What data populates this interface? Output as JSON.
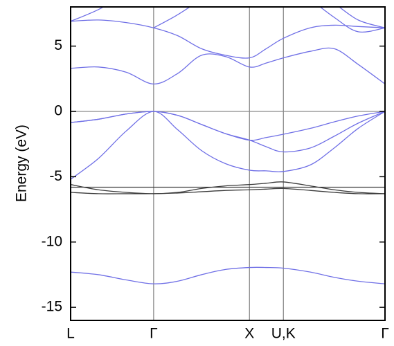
{
  "chart_data": {
    "type": "line",
    "ylabel": "Energy (eV)",
    "x": [
      0,
      0.29,
      0.58,
      0.866,
      1.116,
      1.366,
      1.616,
      1.866,
      2.04,
      2.22,
      2.5,
      2.75,
      3.0,
      3.28
    ],
    "xlim": [
      0,
      3.28
    ],
    "xticks": [
      {
        "value": 0,
        "label": "L"
      },
      {
        "value": 0.866,
        "label": "Γ"
      },
      {
        "value": 1.866,
        "label": "X"
      },
      {
        "value": 2.22,
        "label": "U,K"
      },
      {
        "value": 3.28,
        "label": "Γ"
      }
    ],
    "xgrid": true,
    "ylim": [
      -16,
      8
    ],
    "yticks": [
      -15,
      -10,
      -5,
      0,
      5
    ],
    "reference_line": 0,
    "series": [
      {
        "color": "#6f6fe6",
        "values": [
          -12.3,
          -12.5,
          -12.9,
          -13.2,
          -13.0,
          -12.5,
          -12.1,
          -11.95,
          -11.95,
          -12.0,
          -12.3,
          -12.7,
          -13.0,
          -13.2
        ]
      },
      {
        "color": "#3a3a3a",
        "values": [
          -5.8,
          -5.8,
          -5.8,
          -5.8,
          -5.8,
          -5.8,
          -5.8,
          -5.8,
          -5.8,
          -5.8,
          -5.8,
          -5.8,
          -5.8,
          -5.8
        ]
      },
      {
        "color": "#3a3a3a",
        "values": [
          -5.6,
          -6.0,
          -6.2,
          -6.3,
          -6.2,
          -5.9,
          -5.7,
          -5.6,
          -5.5,
          -5.4,
          -5.7,
          -6.0,
          -6.2,
          -6.3
        ]
      },
      {
        "color": "#3a3a3a",
        "values": [
          -6.2,
          -6.3,
          -6.3,
          -6.3,
          -6.25,
          -6.15,
          -6.05,
          -6.0,
          -5.95,
          -5.9,
          -6.05,
          -6.2,
          -6.3,
          -6.3
        ]
      },
      {
        "color": "#6f6fe6",
        "values": [
          -5.2,
          -3.6,
          -1.5,
          0,
          -1.4,
          -3.0,
          -4.0,
          -4.5,
          -4.55,
          -4.6,
          -4.1,
          -2.8,
          -1.3,
          0
        ]
      },
      {
        "color": "#6f6fe6",
        "values": [
          -0.85,
          -0.6,
          -0.2,
          0,
          -0.3,
          -1.0,
          -1.7,
          -2.2,
          -2.7,
          -3.1,
          -2.8,
          -1.9,
          -0.9,
          0
        ]
      },
      {
        "color": "#6f6fe6",
        "values": [
          -0.85,
          -0.6,
          -0.2,
          0,
          -0.3,
          -1.0,
          -1.7,
          -2.2,
          -2.0,
          -1.75,
          -1.3,
          -0.8,
          -0.35,
          0
        ]
      },
      {
        "color": "#6f6fe6",
        "values": [
          3.3,
          3.4,
          3.0,
          2.1,
          2.9,
          4.3,
          4.2,
          3.4,
          3.7,
          4.1,
          4.6,
          4.8,
          3.6,
          2.1
        ]
      },
      {
        "color": "#6f6fe6",
        "values": [
          6.9,
          7.0,
          6.8,
          6.4,
          5.8,
          4.8,
          4.3,
          4.1,
          4.8,
          5.6,
          6.4,
          6.6,
          6.5,
          6.4
        ]
      },
      {
        "color": "#6f6fe6",
        "values": [
          6.9,
          7.8,
          9.0,
          null,
          null,
          null,
          null,
          null,
          null,
          null,
          null,
          8.3,
          7.0,
          6.4
        ]
      },
      {
        "color": "#6f6fe6",
        "values": [
          null,
          null,
          null,
          6.4,
          7.4,
          8.6,
          null,
          null,
          null,
          null,
          8.6,
          7.2,
          6.1,
          6.4
        ]
      }
    ]
  }
}
